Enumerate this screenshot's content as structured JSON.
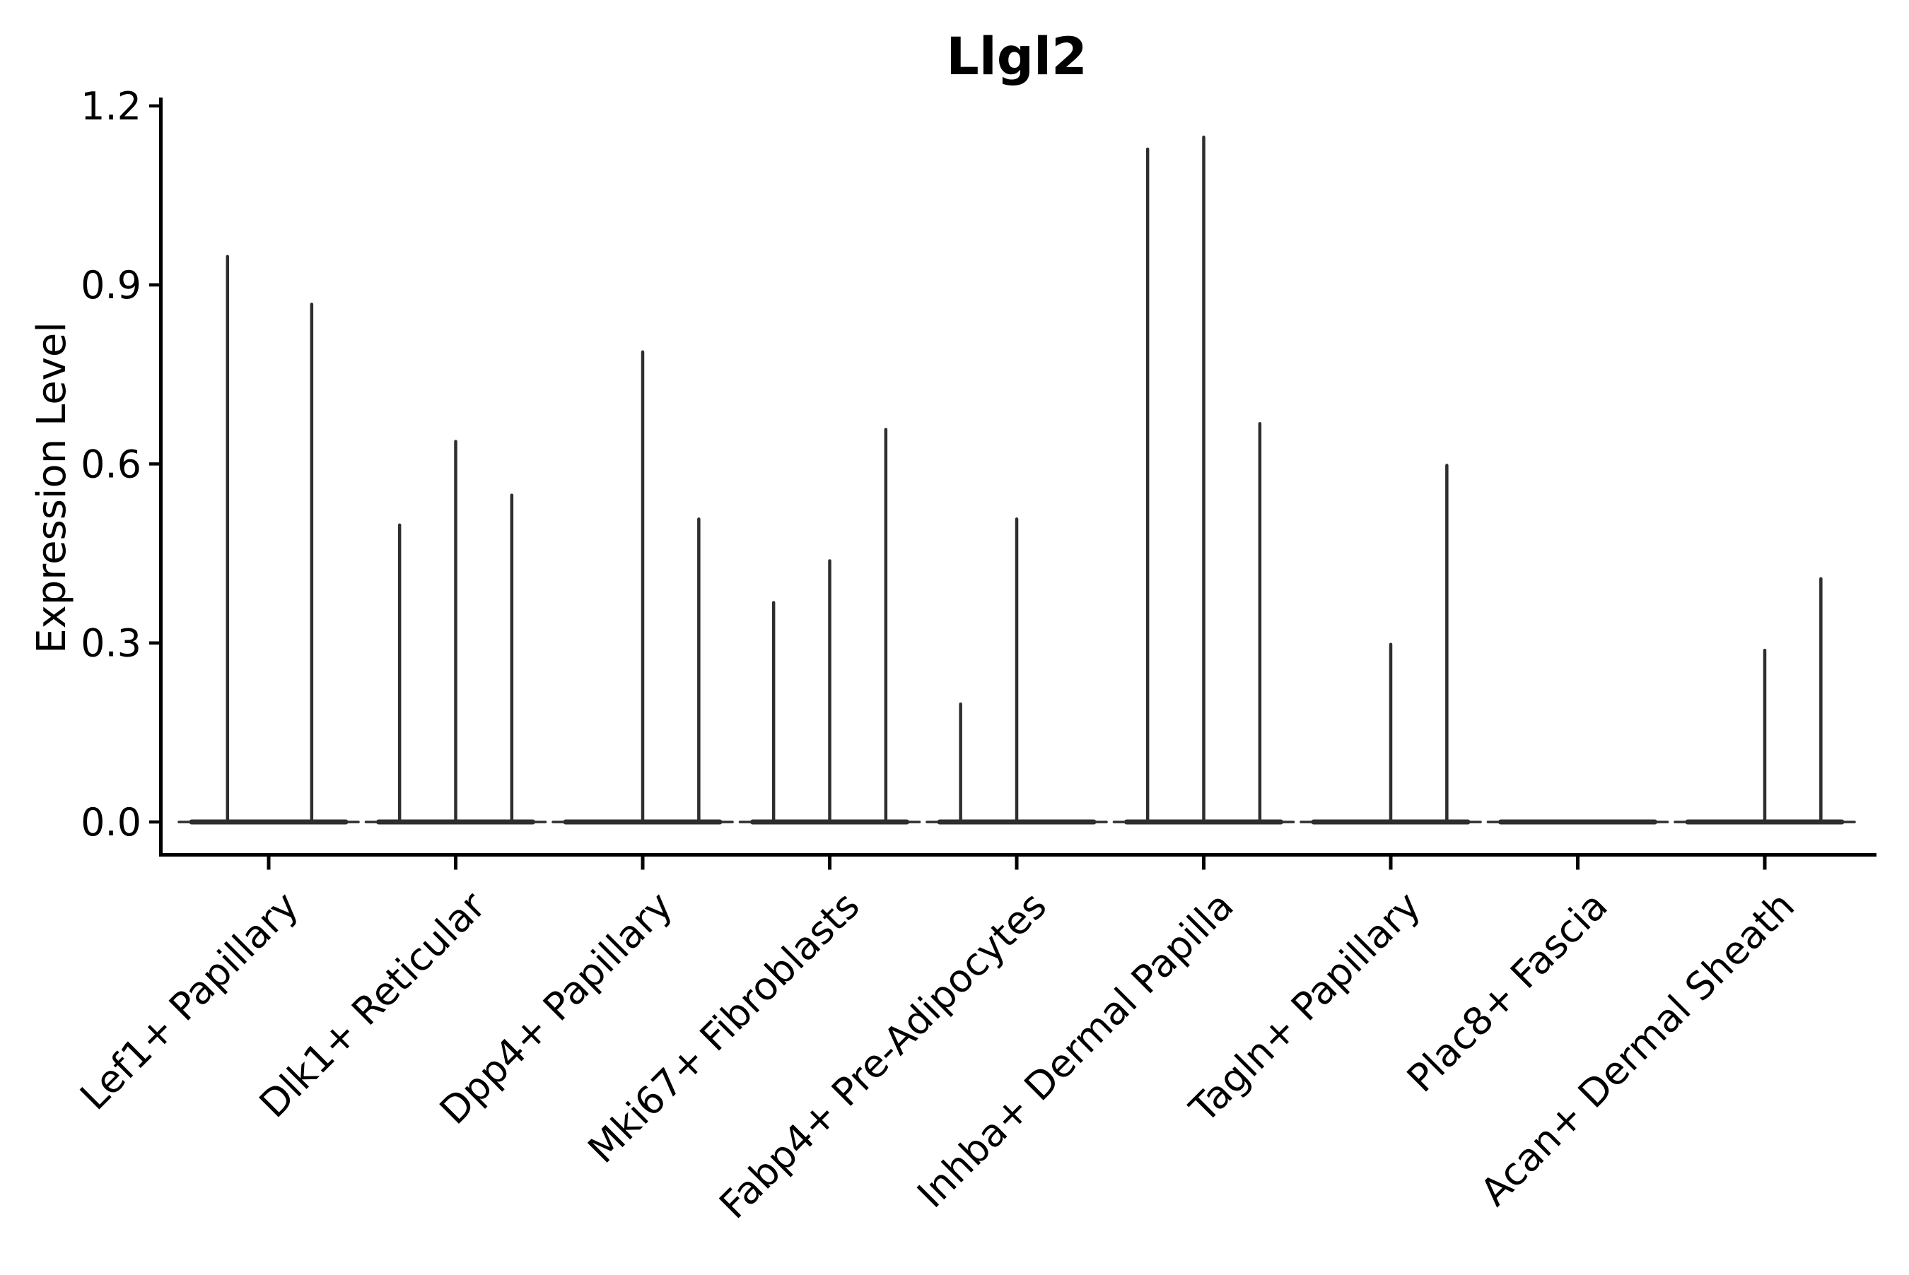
{
  "title": "Llgl2",
  "ylabel": "Expression Level",
  "chart_data": {
    "type": "violin",
    "title": "Llgl2",
    "xlabel": "",
    "ylabel": "Expression Level",
    "ylim": [
      -0.055,
      1.26
    ],
    "grid": false,
    "legend": "none",
    "ytick_labels": [
      "0.0",
      "0.3",
      "0.6",
      "0.9",
      "1.2"
    ],
    "yticks": [
      0.0,
      0.3,
      0.6,
      0.9,
      1.2
    ],
    "categories": [
      "Lef1+ Papillary",
      "Dlk1+ Reticular",
      "Dpp4+ Papillary",
      "Mki67+ Fibroblasts",
      "Fabp4+ Pre-Adipocytes",
      "Inhba+ Dermal Papilla",
      "Tagln+ Papillary",
      "Plac8+ Fascia",
      "Acan+ Dermal Sheath"
    ],
    "violins": [
      {
        "category": "Lef1+ Papillary",
        "base_halfwidth": 0.45,
        "spikes": [
          {
            "offset": -0.22,
            "max": 0.95
          },
          {
            "offset": 0.23,
            "max": 0.87
          }
        ]
      },
      {
        "category": "Dlk1+ Reticular",
        "base_halfwidth": 0.45,
        "spikes": [
          {
            "offset": -0.3,
            "max": 0.5
          },
          {
            "offset": 0.0,
            "max": 0.64
          },
          {
            "offset": 0.3,
            "max": 0.55
          }
        ]
      },
      {
        "category": "Dpp4+ Papillary",
        "base_halfwidth": 0.45,
        "spikes": [
          {
            "offset": 0.0,
            "max": 0.79
          },
          {
            "offset": 0.3,
            "max": 0.51
          }
        ]
      },
      {
        "category": "Mki67+ Fibroblasts",
        "base_halfwidth": 0.45,
        "spikes": [
          {
            "offset": -0.3,
            "max": 0.37
          },
          {
            "offset": 0.0,
            "max": 0.44
          },
          {
            "offset": 0.3,
            "max": 0.66
          }
        ]
      },
      {
        "category": "Fabp4+ Pre-Adipocytes",
        "base_halfwidth": 0.45,
        "spikes": [
          {
            "offset": -0.3,
            "max": 0.2
          },
          {
            "offset": 0.0,
            "max": 0.51
          }
        ]
      },
      {
        "category": "Inhba+ Dermal Papilla",
        "base_halfwidth": 0.45,
        "spikes": [
          {
            "offset": -0.3,
            "max": 1.13
          },
          {
            "offset": 0.0,
            "max": 1.15
          },
          {
            "offset": 0.3,
            "max": 0.67
          }
        ]
      },
      {
        "category": "Tagln+ Papillary",
        "base_halfwidth": 0.45,
        "spikes": [
          {
            "offset": 0.0,
            "max": 0.3
          },
          {
            "offset": 0.3,
            "max": 0.6
          }
        ]
      },
      {
        "category": "Plac8+ Fascia",
        "base_halfwidth": 0.45,
        "spikes": []
      },
      {
        "category": "Acan+ Dermal Sheath",
        "base_halfwidth": 0.45,
        "spikes": [
          {
            "offset": 0.0,
            "max": 0.29
          },
          {
            "offset": 0.3,
            "max": 0.41
          }
        ]
      }
    ],
    "colors": {
      "violin": "#2e2e2e",
      "axis": "#000000",
      "text": "#000000",
      "background": "#ffffff"
    }
  }
}
